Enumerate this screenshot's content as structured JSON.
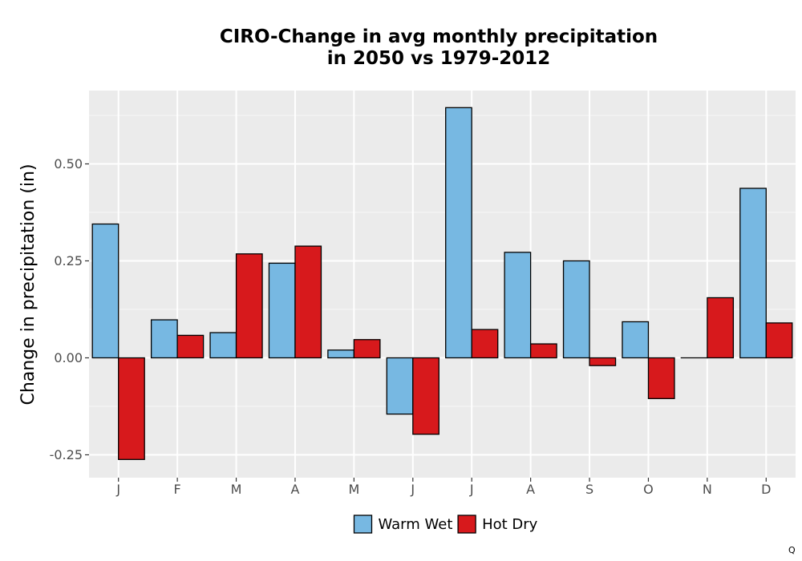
{
  "chart_data": {
    "type": "bar",
    "title_line1": "CIRO-Change in avg monthly precipitation",
    "title_line2": "in 2050 vs 1979-2012",
    "xlabel": "",
    "ylabel": "Change in precipitation (in)",
    "categories": [
      "J",
      "F",
      "M",
      "A",
      "M",
      "J",
      "J",
      "A",
      "S",
      "O",
      "N",
      "D"
    ],
    "series": [
      {
        "name": "Warm Wet",
        "color": "#77b8e2",
        "values": [
          0.345,
          0.098,
          0.065,
          0.244,
          0.02,
          -0.145,
          0.645,
          0.272,
          0.25,
          0.093,
          0.0,
          0.437
        ]
      },
      {
        "name": "Hot Dry",
        "color": "#d7191c",
        "values": [
          -0.262,
          0.058,
          0.268,
          0.288,
          0.047,
          -0.197,
          0.073,
          0.036,
          -0.02,
          -0.105,
          0.155,
          0.09
        ]
      }
    ],
    "yticks": [
      -0.25,
      0.0,
      0.25,
      0.5
    ],
    "ytick_labels": [
      "-0.25",
      "0.00",
      "0.25",
      "0.50"
    ],
    "ylim": [
      -0.31,
      0.69
    ],
    "grid": true,
    "legend_position": "bottom"
  },
  "corner_mark": "Q"
}
